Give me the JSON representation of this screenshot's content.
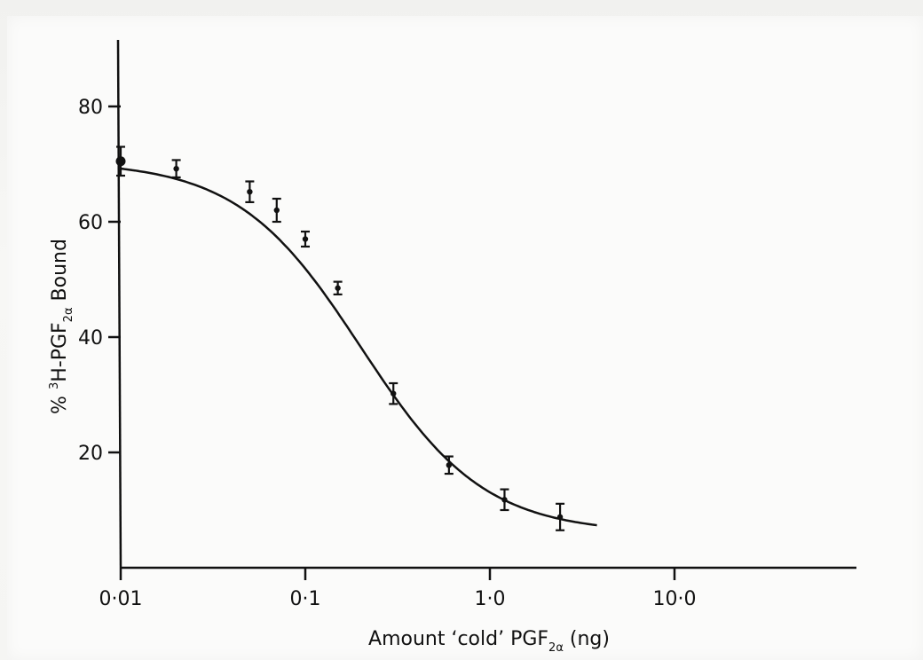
{
  "chart_data": {
    "type": "line",
    "title": "",
    "xscale": "log",
    "xlim": [
      0.01,
      20
    ],
    "ylim": [
      0,
      90
    ],
    "grid": false,
    "xlabel": {
      "prefix": "Amount  ‘cold’ PGF",
      "subscript": "2α",
      "suffix": " (ng)"
    },
    "ylabel": {
      "prefix": "%  ",
      "superscript": "3",
      "main": "H-PGF",
      "subscript": "2α",
      "suffix": " Bound"
    },
    "x_ticks": [
      {
        "value": 0.01,
        "label": "0·01"
      },
      {
        "value": 0.1,
        "label": "0·1"
      },
      {
        "value": 1.0,
        "label": "1·0"
      },
      {
        "value": 10.0,
        "label": "10·0"
      }
    ],
    "y_ticks": [
      {
        "value": 20,
        "label": "20"
      },
      {
        "value": 40,
        "label": "40"
      },
      {
        "value": 60,
        "label": "60"
      },
      {
        "value": 80,
        "label": "80"
      }
    ],
    "series": [
      {
        "points": [
          {
            "x": 0.01,
            "y": 70.5,
            "err": 2.5
          },
          {
            "x": 0.02,
            "y": 69.2,
            "err": 1.5
          },
          {
            "x": 0.05,
            "y": 65.2,
            "err": 1.8
          },
          {
            "x": 0.07,
            "y": 62.0,
            "err": 2.0
          },
          {
            "x": 0.1,
            "y": 57.0,
            "err": 1.3
          },
          {
            "x": 0.15,
            "y": 48.5,
            "err": 1.1
          },
          {
            "x": 0.3,
            "y": 30.2,
            "err": 1.8
          },
          {
            "x": 0.6,
            "y": 17.8,
            "err": 1.5
          },
          {
            "x": 1.2,
            "y": 11.8,
            "err": 1.8
          },
          {
            "x": 2.4,
            "y": 8.8,
            "err": 2.3
          }
        ],
        "curve": {
          "top": 70.5,
          "bottom": 6.0,
          "ic50": 0.2,
          "hill": 1.3,
          "x_end": 3.8
        }
      }
    ]
  }
}
